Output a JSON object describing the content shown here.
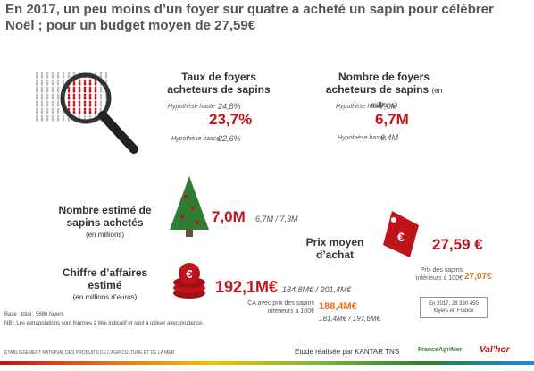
{
  "title": "En 2017, un peu moins d’un foyer sur quatre a acheté un sapin pour célébrer Noël ; pour un budget moyen de 27,59€",
  "foyers_rate": {
    "heading": "Taux de foyers acheteurs de sapins",
    "high_label": "Hypothèse haute",
    "high": "24,8%",
    "main": "23,7%",
    "low_label": "Hypothèse basse",
    "low": "22,6%"
  },
  "foyers_count": {
    "heading": "Nombre de foyers acheteurs de sapins",
    "unit": "(en millions)",
    "high_label": "Hypothèse haute",
    "high": "7,0M",
    "main": "6,7M",
    "low_label": "Hypothèse basse",
    "low": "6,4M"
  },
  "trees": {
    "heading": "Nombre estimé de sapins achetés",
    "unit": "(en millions)",
    "main": "7,0M",
    "range": "6,7M / 7,3M"
  },
  "price": {
    "heading": "Prix moyen d’achat",
    "main": "27,59 €",
    "sub_label": "Prix des sapins inférieurs à 100€",
    "sub": "27,07€"
  },
  "revenue": {
    "heading": "Chiffre d’affaires estimé",
    "unit": "(en millions d’euros)",
    "main": "192,1M€",
    "range": "184,8M€ / 201,4M€",
    "sub_label": "CA avec prix des sapins inférieurs à 100€",
    "sub": "188,4M€",
    "sub_range": "181,4M€ / 197,6M€"
  },
  "households_box": "En 2017, 28 330 450 foyers en France",
  "notes": [
    "Base : total : 5686 foyers",
    "NB : Les extrapolations sont fournies à titre indicatif et sont à utiliser avec prudence."
  ],
  "footer": {
    "agency": "ÉTABLISSEMENT NATIONAL DES PRODUITS DE L’AGRICULTURE ET DE LA MER",
    "study": "Etude réalisée par KANTAR TNS",
    "logo1": "FranceAgriMer",
    "logo2": "Val’hor"
  }
}
